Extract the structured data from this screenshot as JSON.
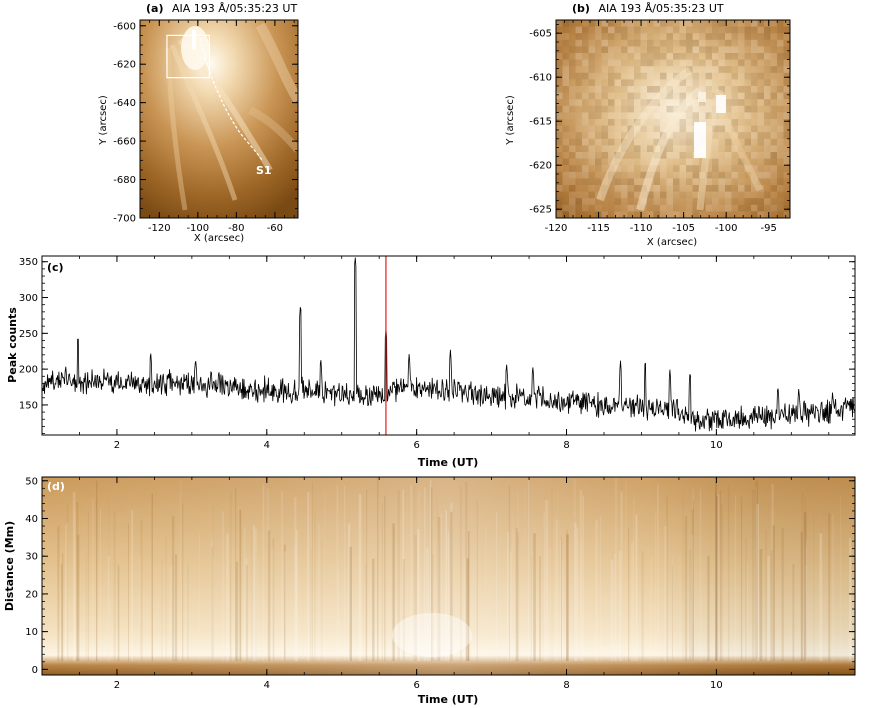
{
  "colors": {
    "sun_dark": "#7a4a14",
    "sun_mid": "#c08a45",
    "sun_light": "#f2dcb4",
    "sun_bright": "#fff8ea",
    "lightcurve": "#000000",
    "marker": "#e02020"
  },
  "chart_data": [
    {
      "panel": "(a)",
      "type": "heatmap",
      "title": "AIA 193 Å/05:35:23 UT",
      "xlabel": "X (arcsec)",
      "ylabel": "Y (arcsec)",
      "xlim": [
        -130,
        -48
      ],
      "ylim": [
        -700,
        -597
      ],
      "xticks": [
        -120,
        -100,
        -80,
        -60
      ],
      "yticks": [
        -700,
        -680,
        -660,
        -640,
        -620,
        -600
      ],
      "annotation": "S1",
      "box": {
        "x": [
          -116,
          -94
        ],
        "y": [
          -627,
          -605
        ]
      }
    },
    {
      "panel": "(b)",
      "type": "heatmap",
      "title": "AIA 193 Å/05:35:23 UT",
      "xlabel": "X (arcsec)",
      "ylabel": "Y (arcsec)",
      "xlim": [
        -120,
        -92.5
      ],
      "ylim": [
        -626,
        -603.5
      ],
      "xticks": [
        -120,
        -115,
        -110,
        -105,
        -100,
        -95
      ],
      "yticks": [
        -625,
        -620,
        -615,
        -610,
        -605
      ]
    },
    {
      "panel": "(c)",
      "type": "line",
      "xlabel": "Time (UT)",
      "ylabel": "Peak counts",
      "xlim": [
        1.0,
        11.85
      ],
      "ylim": [
        108,
        358
      ],
      "xticks": [
        2,
        4,
        6,
        8,
        10
      ],
      "yticks": [
        150,
        200,
        250,
        300,
        350
      ],
      "marker_time": 5.59,
      "series_points": [
        [
          1.0,
          180
        ],
        [
          1.3,
          186
        ],
        [
          1.6,
          181
        ],
        [
          1.9,
          184
        ],
        [
          2.2,
          179
        ],
        [
          2.5,
          178
        ],
        [
          2.8,
          182
        ],
        [
          3.1,
          176
        ],
        [
          3.4,
          178
        ],
        [
          3.7,
          171
        ],
        [
          4.0,
          172
        ],
        [
          4.3,
          167
        ],
        [
          4.6,
          174
        ],
        [
          4.9,
          161
        ],
        [
          5.2,
          166
        ],
        [
          5.5,
          163
        ],
        [
          5.8,
          175
        ],
        [
          6.1,
          171
        ],
        [
          6.4,
          172
        ],
        [
          6.7,
          168
        ],
        [
          7.0,
          163
        ],
        [
          7.3,
          162
        ],
        [
          7.6,
          158
        ],
        [
          7.9,
          156
        ],
        [
          8.2,
          152
        ],
        [
          8.5,
          151
        ],
        [
          8.8,
          149
        ],
        [
          9.1,
          144
        ],
        [
          9.4,
          145
        ],
        [
          9.7,
          130
        ],
        [
          10.0,
          128
        ],
        [
          10.3,
          131
        ],
        [
          10.6,
          133
        ],
        [
          10.9,
          135
        ],
        [
          11.2,
          138
        ],
        [
          11.5,
          141
        ],
        [
          11.85,
          148
        ]
      ],
      "spikes": [
        [
          1.48,
          248
        ],
        [
          2.45,
          225
        ],
        [
          3.05,
          216
        ],
        [
          4.45,
          291
        ],
        [
          4.72,
          216
        ],
        [
          5.18,
          358
        ],
        [
          5.59,
          257
        ],
        [
          5.9,
          222
        ],
        [
          6.45,
          227
        ],
        [
          7.2,
          208
        ],
        [
          7.55,
          205
        ],
        [
          8.72,
          212
        ],
        [
          9.05,
          214
        ],
        [
          9.38,
          200
        ],
        [
          9.65,
          198
        ],
        [
          10.82,
          178
        ],
        [
          11.1,
          174
        ],
        [
          11.55,
          168
        ]
      ]
    },
    {
      "panel": "(d)",
      "type": "heatmap",
      "xlabel": "Time (UT)",
      "ylabel": "Distance (Mm)",
      "xlim": [
        1.0,
        11.85
      ],
      "ylim": [
        -1.5,
        51
      ],
      "xticks": [
        2,
        4,
        6,
        8,
        10
      ],
      "yticks": [
        0,
        10,
        20,
        30,
        40,
        50
      ]
    }
  ]
}
